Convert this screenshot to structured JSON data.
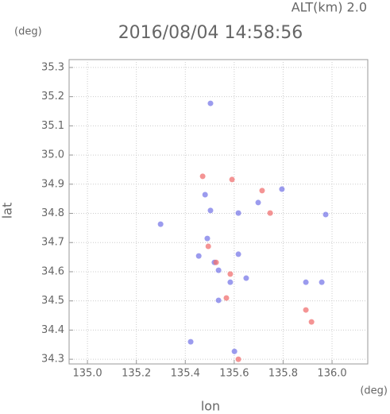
{
  "chart_data": {
    "type": "scatter",
    "title": "2016/08/04 14:58:56",
    "subtitle": "ALT(km) 2.0",
    "x_label": "lon",
    "y_label": "lat",
    "x_unit": "(deg)",
    "y_unit": "(deg)",
    "xlim": [
      134.925,
      136.146
    ],
    "ylim": [
      34.284,
      35.327
    ],
    "xticks": [
      {
        "value": 135,
        "label": "135.0"
      },
      135.2,
      135.4,
      135.6,
      135.8,
      {
        "value": 136,
        "label": "136.0"
      }
    ],
    "yticks": [
      34.3,
      34.4,
      34.5,
      34.6,
      34.7,
      34.8,
      34.9,
      {
        "value": 35,
        "label": "35.0"
      },
      35.1,
      35.2,
      35.3
    ],
    "grid": true,
    "series": [
      {
        "color": "#7a7ae8",
        "x": [
          135.503,
          135.299,
          135.974,
          135.481,
          135.503,
          135.617,
          135.698,
          135.49,
          135.455,
          135.617,
          135.536,
          135.584,
          135.536,
          135.893,
          135.958,
          135.422,
          135.601,
          135.795,
          135.519,
          135.649
        ],
        "y": [
          35.177,
          34.763,
          34.796,
          34.864,
          34.81,
          34.801,
          34.837,
          34.714,
          34.654,
          34.66,
          34.605,
          34.564,
          34.502,
          34.564,
          34.564,
          34.36,
          34.327,
          34.883,
          34.632,
          34.578
        ]
      },
      {
        "color": "#f07070",
        "x": [
          135.471,
          135.591,
          135.714,
          135.747,
          135.526,
          135.584,
          135.568,
          135.893,
          135.916,
          135.617,
          135.494
        ],
        "y": [
          34.927,
          34.916,
          34.878,
          34.801,
          34.632,
          34.592,
          34.51,
          34.469,
          34.428,
          34.3,
          34.687
        ]
      }
    ]
  }
}
